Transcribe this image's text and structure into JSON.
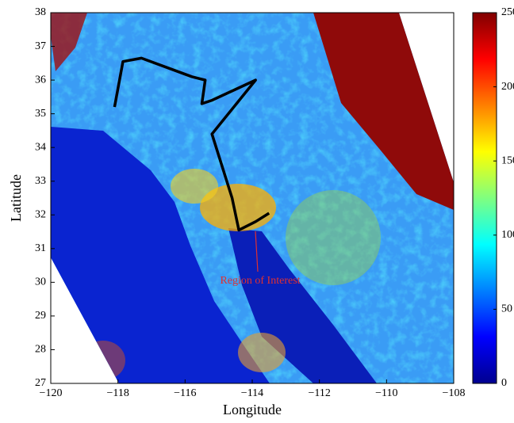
{
  "chart_data": {
    "type": "map",
    "xlabel": "Longitude",
    "ylabel": "Latitude",
    "xlim": [
      -120,
      -108
    ],
    "ylim": [
      27,
      38
    ],
    "xticks": [
      {
        "value": -120,
        "label": "−120"
      },
      {
        "value": -118,
        "label": "−118"
      },
      {
        "value": -116,
        "label": "−116"
      },
      {
        "value": -114,
        "label": "−114"
      },
      {
        "value": -112,
        "label": "−112"
      },
      {
        "value": -110,
        "label": "−110"
      },
      {
        "value": -108,
        "label": "−108"
      }
    ],
    "yticks": [
      27,
      28,
      29,
      30,
      31,
      32,
      33,
      34,
      35,
      36,
      37,
      38
    ],
    "clim": [
      0,
      250
    ],
    "cticks": [
      0,
      50,
      100,
      150,
      200,
      250
    ],
    "track": {
      "color": "#000000",
      "x": [
        -118.1,
        -117.85,
        -117.3,
        -115.8,
        -115.4,
        -115.5,
        -115.2,
        -113.9,
        -115.2,
        -114.6,
        -114.4,
        -113.9,
        -113.5
      ],
      "y": [
        35.2,
        36.55,
        36.65,
        36.1,
        36.0,
        35.3,
        35.4,
        36.0,
        34.4,
        32.5,
        31.55,
        31.8,
        32.05
      ]
    },
    "annotation": {
      "text": "Region of Interest",
      "color": "#e03030"
    }
  }
}
